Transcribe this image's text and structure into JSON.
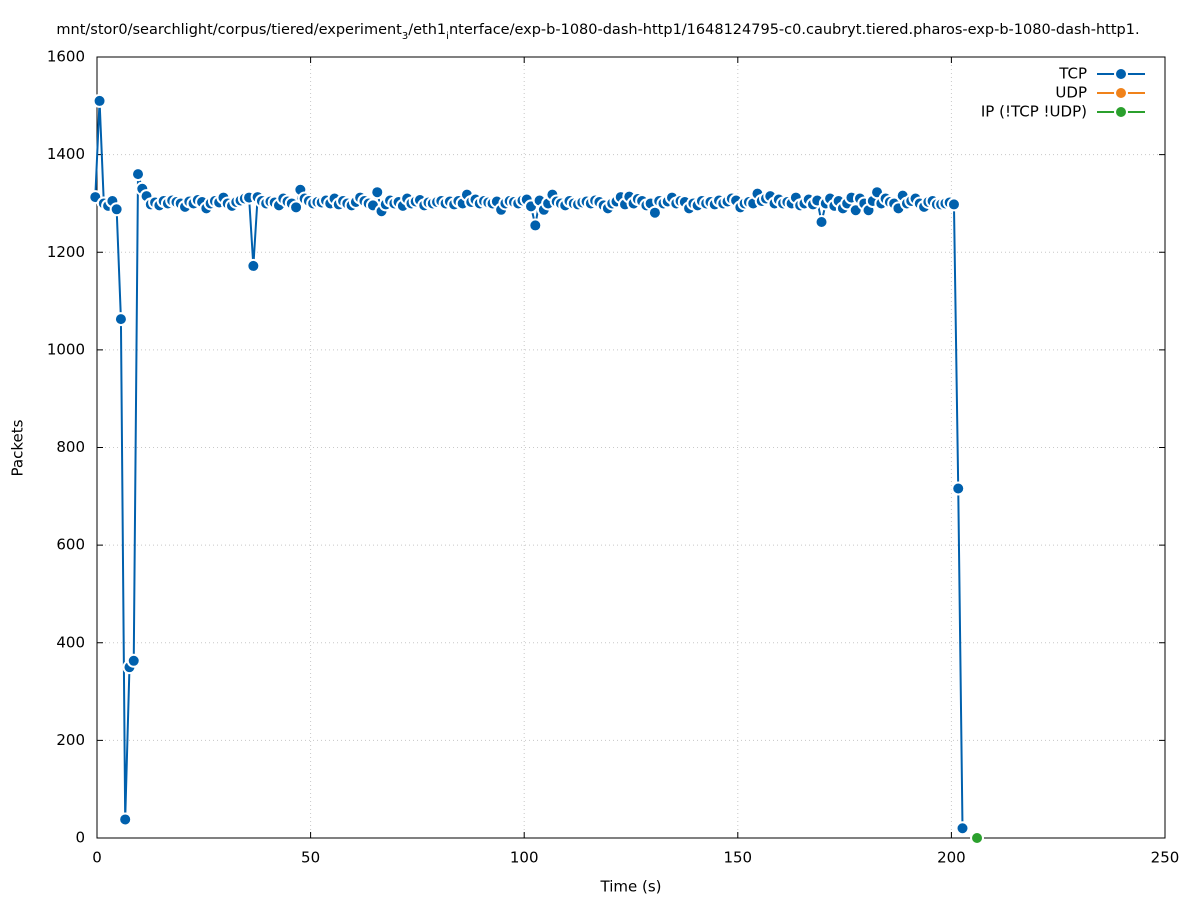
{
  "chart_data": {
    "type": "line",
    "title": [
      "mnt/stor0/searchlight/corpus/tiered/experiment",
      "3",
      "/eth1",
      "i",
      "nterface/exp-b-1080-dash-http1/1648124795-c0.caubryt.tiered.pharos-exp-b-1080-dash-http1."
    ],
    "x_label": "Time (s)",
    "y_label": "Packets",
    "xlim": [
      0,
      250
    ],
    "xticks": [
      0,
      50,
      100,
      150,
      200,
      250
    ],
    "ylim": [
      0,
      1600
    ],
    "yticks": [
      0,
      200,
      400,
      600,
      800,
      1000,
      1200,
      1400,
      1600
    ],
    "grid": true,
    "legend": "top-right",
    "series": [
      {
        "name": "TCP",
        "color": "#0060ad",
        "x": [
          -0.4,
          0.6,
          1.6,
          2.6,
          3.6,
          4.6,
          5.6,
          6.6,
          7.6,
          8.6,
          9.6,
          10.6,
          11.6,
          12.6,
          13.6,
          14.6,
          15.6,
          16.6,
          17.6,
          18.6,
          19.6,
          20.6,
          21.6,
          22.6,
          23.6,
          24.6,
          25.6,
          26.6,
          27.6,
          28.6,
          29.6,
          30.6,
          31.6,
          32.6,
          33.6,
          34.6,
          35.6,
          36.6,
          37.6,
          38.6,
          39.6,
          40.6,
          41.6,
          42.6,
          43.6,
          44.6,
          45.6,
          46.6,
          47.6,
          48.6,
          49.6,
          50.6,
          51.6,
          52.6,
          53.6,
          54.6,
          55.6,
          56.6,
          57.6,
          58.6,
          59.6,
          60.6,
          61.6,
          62.6,
          63.6,
          64.6,
          65.6,
          66.6,
          67.6,
          68.6,
          69.6,
          70.6,
          71.6,
          72.6,
          73.6,
          74.6,
          75.6,
          76.6,
          77.6,
          78.6,
          79.6,
          80.6,
          81.6,
          82.6,
          83.6,
          84.6,
          85.6,
          86.6,
          87.6,
          88.6,
          89.6,
          90.6,
          91.6,
          92.6,
          93.6,
          94.6,
          95.6,
          96.6,
          97.6,
          98.6,
          99.6,
          100.6,
          101.6,
          102.6,
          103.6,
          104.6,
          105.6,
          106.6,
          107.6,
          108.6,
          109.6,
          110.6,
          111.6,
          112.6,
          113.6,
          114.6,
          115.6,
          116.6,
          117.6,
          118.6,
          119.6,
          120.6,
          121.6,
          122.6,
          123.6,
          124.6,
          125.6,
          126.6,
          127.6,
          128.6,
          129.6,
          130.6,
          131.6,
          132.6,
          133.6,
          134.6,
          135.6,
          136.6,
          137.6,
          138.6,
          139.6,
          140.6,
          141.6,
          142.6,
          143.6,
          144.6,
          145.6,
          146.6,
          147.6,
          148.6,
          149.6,
          150.6,
          151.6,
          152.6,
          153.6,
          154.6,
          155.6,
          156.6,
          157.6,
          158.6,
          159.6,
          160.6,
          161.6,
          162.6,
          163.6,
          164.6,
          165.6,
          166.6,
          167.6,
          168.6,
          169.6,
          170.6,
          171.6,
          172.6,
          173.6,
          174.6,
          175.6,
          176.6,
          177.6,
          178.6,
          179.6,
          180.6,
          181.6,
          182.6,
          183.6,
          184.6,
          185.6,
          186.6,
          187.6,
          188.6,
          189.6,
          190.6,
          191.6,
          192.6,
          193.6,
          194.6,
          195.6,
          196.6,
          197.6,
          198.6,
          199.6,
          200.6,
          201.6,
          202.6
        ],
        "values": [
          1313,
          1510,
          1300,
          1295,
          1305,
          1288,
          1063,
          38,
          350,
          363,
          1360,
          1330,
          1315,
          1298,
          1302,
          1296,
          1305,
          1300,
          1306,
          1303,
          1300,
          1293,
          1304,
          1300,
          1307,
          1303,
          1290,
          1300,
          1305,
          1302,
          1312,
          1300,
          1295,
          1303,
          1306,
          1310,
          1312,
          1172,
          1313,
          1305,
          1300,
          1304,
          1302,
          1296,
          1310,
          1304,
          1300,
          1292,
          1328,
          1310,
          1305,
          1300,
          1303,
          1302,
          1306,
          1300,
          1310,
          1298,
          1305,
          1300,
          1296,
          1303,
          1312,
          1305,
          1300,
          1296,
          1323,
          1284,
          1298,
          1306,
          1300,
          1303,
          1295,
          1310,
          1300,
          1304,
          1307,
          1296,
          1302,
          1300,
          1303,
          1305,
          1300,
          1304,
          1298,
          1305,
          1300,
          1318,
          1303,
          1308,
          1300,
          1305,
          1302,
          1300,
          1304,
          1287,
          1300,
          1305,
          1303,
          1300,
          1306,
          1308,
          1294,
          1255,
          1306,
          1287,
          1300,
          1318,
          1304,
          1300,
          1296,
          1305,
          1300,
          1298,
          1302,
          1304,
          1300,
          1306,
          1303,
          1296,
          1290,
          1300,
          1304,
          1313,
          1298,
          1314,
          1300,
          1309,
          1305,
          1296,
          1300,
          1281,
          1305,
          1300,
          1304,
          1312,
          1300,
          1305,
          1303,
          1290,
          1300,
          1296,
          1305,
          1300,
          1303,
          1298,
          1306,
          1300,
          1304,
          1310,
          1306,
          1292,
          1300,
          1303,
          1300,
          1320,
          1305,
          1310,
          1315,
          1300,
          1308,
          1300,
          1303,
          1300,
          1312,
          1296,
          1300,
          1308,
          1298,
          1306,
          1262,
          1300,
          1310,
          1295,
          1305,
          1290,
          1300,
          1312,
          1286,
          1310,
          1300,
          1286,
          1305,
          1323,
          1300,
          1310,
          1303,
          1300,
          1290,
          1316,
          1300,
          1305,
          1310,
          1300,
          1293,
          1303,
          1305,
          1298,
          1298,
          1300,
          1302,
          1298,
          716,
          20
        ]
      },
      {
        "name": "UDP",
        "color": "#f0821a",
        "x": [],
        "values": []
      },
      {
        "name": "IP (!TCP  !UDP)",
        "color": "#2ba02d",
        "x": [
          206
        ],
        "values": [
          0
        ]
      }
    ]
  }
}
